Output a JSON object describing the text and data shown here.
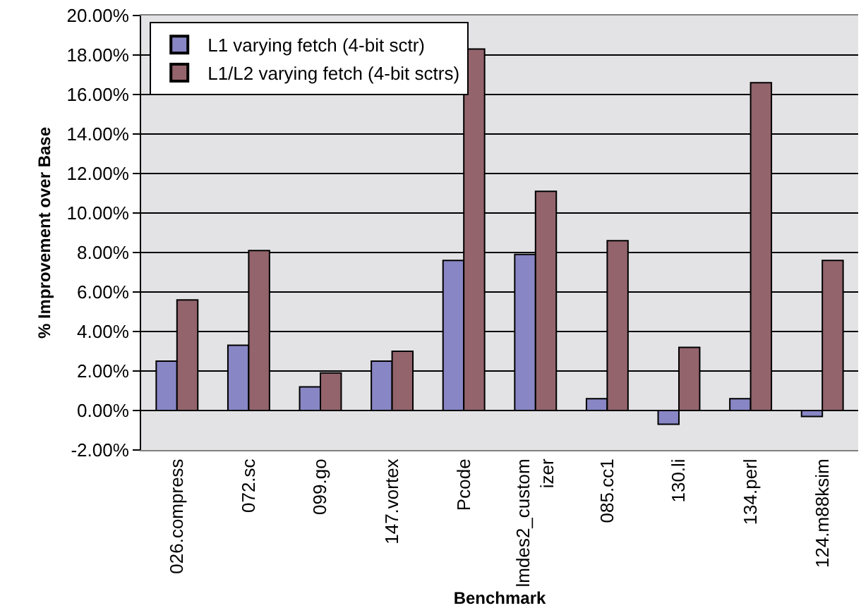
{
  "chart_data": {
    "type": "bar",
    "xlabel": "Benchmark",
    "ylabel": "% Improvement over Base",
    "categories": [
      "026.compress",
      "072.sc",
      "099.go",
      "147.vortex",
      "Pcode",
      "lmdes2_custom\nizer",
      "085.cc1",
      "130.li",
      "134.perl",
      "124.m88ksim"
    ],
    "series": [
      {
        "name": "L1 varying fetch (4-bit sctr)",
        "color": "#8886c4",
        "values": [
          2.5,
          3.3,
          1.2,
          2.5,
          7.6,
          7.9,
          0.6,
          -0.7,
          0.6,
          -0.3
        ]
      },
      {
        "name": "L1/L2 varying fetch (4-bit sctrs)",
        "color": "#93646c",
        "values": [
          5.6,
          8.1,
          1.9,
          3.0,
          18.3,
          11.1,
          8.6,
          3.2,
          16.6,
          7.6
        ]
      }
    ],
    "ylim": [
      -2,
      20
    ],
    "yticks": [
      {
        "value": -2,
        "label": "-2.00%"
      },
      {
        "value": 0,
        "label": "0.00%"
      },
      {
        "value": 2,
        "label": "2.00%"
      },
      {
        "value": 4,
        "label": "4.00%"
      },
      {
        "value": 6,
        "label": "6.00%"
      },
      {
        "value": 8,
        "label": "8.00%"
      },
      {
        "value": 10,
        "label": "10.00%"
      },
      {
        "value": 12,
        "label": "12.00%"
      },
      {
        "value": 14,
        "label": "14.00%"
      },
      {
        "value": 16,
        "label": "16.00%"
      },
      {
        "value": 18,
        "label": "18.00%"
      },
      {
        "value": 20,
        "label": "20.00%"
      }
    ],
    "grid": "y",
    "legend": "top left"
  }
}
